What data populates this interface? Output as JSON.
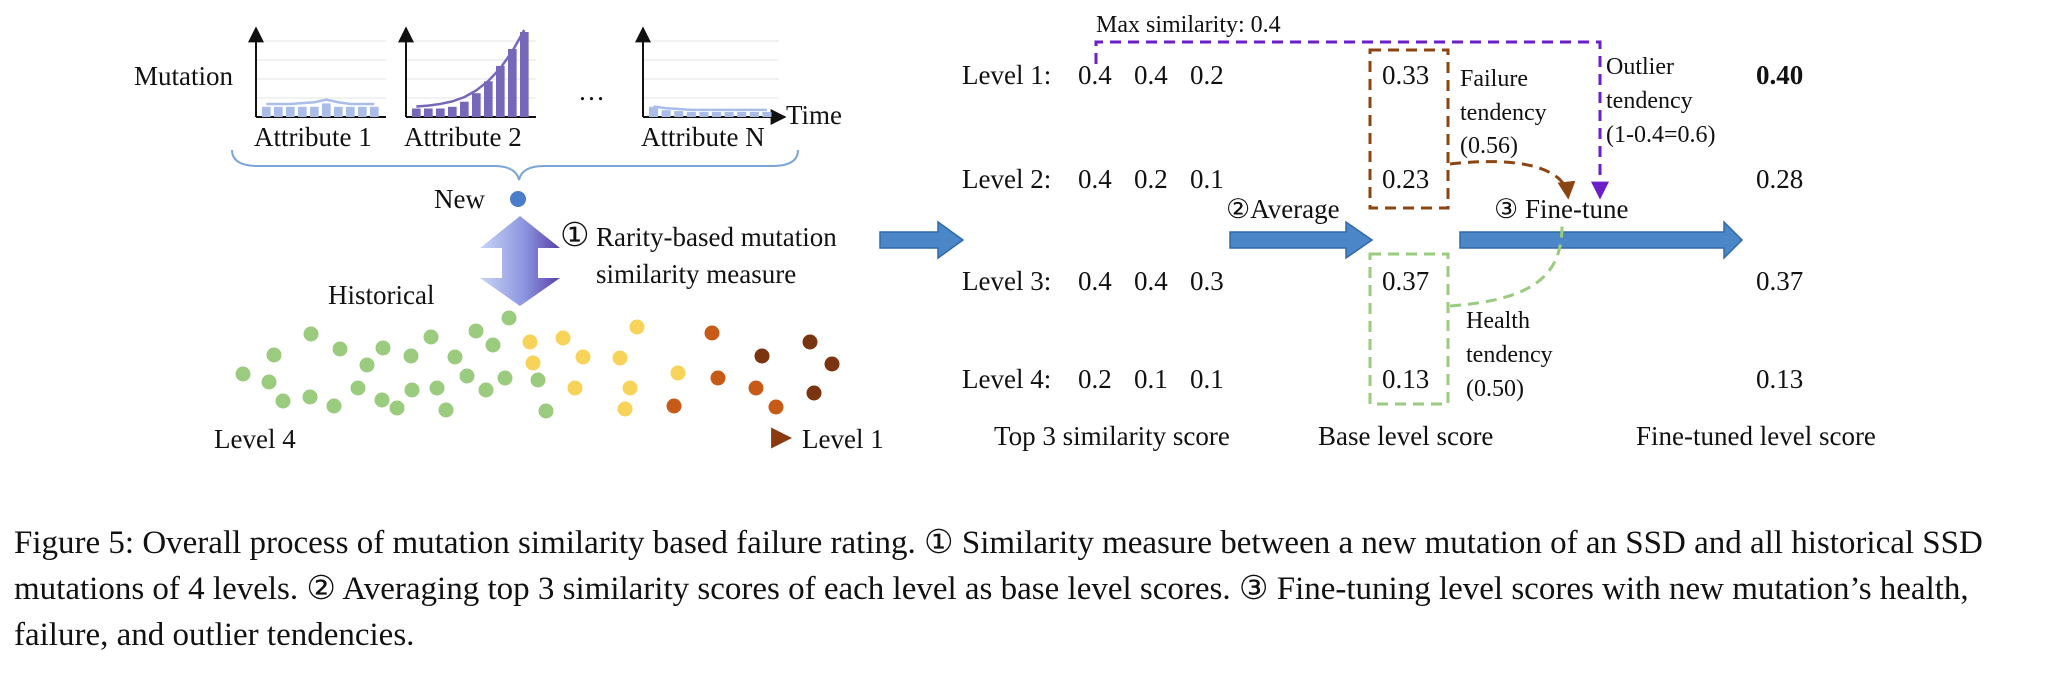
{
  "mini_charts": {
    "ylabel": "Mutation",
    "xlabel": "Time",
    "ellipsis": "…",
    "items": [
      {
        "label": "Attribute 1",
        "values": [
          0.12,
          0.12,
          0.12,
          0.12,
          0.12,
          0.16,
          0.12,
          0.12,
          0.12,
          0.12
        ],
        "trend": [
          0.13,
          0.13,
          0.13,
          0.14,
          0.15,
          0.18,
          0.15,
          0.13,
          0.13,
          0.13
        ]
      },
      {
        "label": "Attribute 2",
        "values": [
          0.1,
          0.1,
          0.1,
          0.12,
          0.18,
          0.28,
          0.42,
          0.6,
          0.8,
          1.0
        ],
        "trend": [
          0.1,
          0.11,
          0.13,
          0.16,
          0.21,
          0.29,
          0.4,
          0.55,
          0.75,
          1.0
        ]
      },
      {
        "label": "Attribute N",
        "values": [
          0.12,
          0.08,
          0.07,
          0.06,
          0.06,
          0.06,
          0.06,
          0.06,
          0.06,
          0.06
        ],
        "trend": [
          0.1,
          0.08,
          0.07,
          0.06,
          0.06,
          0.06,
          0.06,
          0.06,
          0.06,
          0.06
        ]
      }
    ]
  },
  "left": {
    "new_label": "New",
    "historical_label": "Historical",
    "step1_num": "①",
    "step1_line1": "Rarity-based mutation",
    "step1_line2": "similarity measure",
    "level_low": "Level 4",
    "level_high": "Level 1"
  },
  "levels": [
    {
      "label": "Level 1:",
      "scores": [
        "0.4",
        "0.4",
        "0.2"
      ],
      "base": "0.33",
      "fine": "0.40",
      "fine_bold": true
    },
    {
      "label": "Level 2:",
      "scores": [
        "0.4",
        "0.2",
        "0.1"
      ],
      "base": "0.23",
      "fine": "0.28",
      "fine_bold": false
    },
    {
      "label": "Level 3:",
      "scores": [
        "0.4",
        "0.4",
        "0.3"
      ],
      "base": "0.37",
      "fine": "0.37",
      "fine_bold": false
    },
    {
      "label": "Level 4:",
      "scores": [
        "0.2",
        "0.1",
        "0.1"
      ],
      "base": "0.13",
      "fine": "0.13",
      "fine_bold": false
    }
  ],
  "annotations": {
    "max_similarity": "Max similarity: 0.4",
    "failure_lines": [
      "Failure",
      "tendency",
      "(0.56)"
    ],
    "outlier_lines": [
      "Outlier",
      "tendency",
      "(1-0.4=0.6)"
    ],
    "health_lines": [
      "Health",
      "tendency",
      "(0.50)"
    ],
    "step2": "②Average",
    "step3": "③ Fine-tune"
  },
  "column_headers": {
    "top3": "Top 3 similarity score",
    "base": "Base level score",
    "fine": "Fine-tuned level score"
  },
  "colors": {
    "arrow_blue": "#4a86c8",
    "chart_light": "#a9bde8",
    "chart_dark": "#7667b8",
    "failure_brown": "#8b4513",
    "outlier_purple": "#6a1fc9",
    "health_green": "#9acb7f",
    "dot_green": "#9acb7f",
    "dot_yellow": "#f7d35a",
    "dot_orange": "#c85a18",
    "dot_brown": "#7a3510",
    "new_dot": "#4a7cc9"
  },
  "caption": "Figure 5: Overall process of mutation similarity based failure rating. ① Similarity measure between a new mutation of an SSD and all historical SSD mutations of 4 levels. ② Averaging top 3 similarity scores of each level as base level scores. ③ Fine-tuning level scores with new mutation’s health, failure, and outlier tendencies."
}
